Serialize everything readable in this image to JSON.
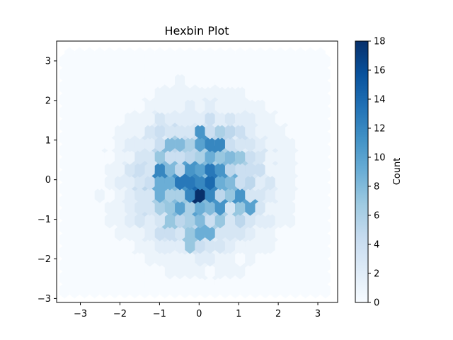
{
  "chart_data": {
    "type": "heatmap",
    "subtype": "hexbin",
    "title": "Hexbin Plot",
    "xlabel": "",
    "ylabel": "",
    "xlim": [
      -3.6,
      3.5
    ],
    "ylim": [
      -3.1,
      3.5
    ],
    "x_ticks": [
      -3,
      -2,
      -1,
      0,
      1,
      2,
      3
    ],
    "y_ticks": [
      -3,
      -2,
      -1,
      0,
      1,
      2,
      3
    ],
    "x_tick_labels": [
      "−3",
      "−2",
      "−1",
      "0",
      "1",
      "2",
      "3"
    ],
    "y_tick_labels": [
      "−3",
      "−2",
      "−1",
      "0",
      "1",
      "2",
      "3"
    ],
    "colormap": "Blues",
    "colorbar": {
      "label": "Count",
      "range": [
        0,
        18
      ],
      "ticks": [
        0,
        2,
        4,
        6,
        8,
        10,
        12,
        14,
        16,
        18
      ]
    },
    "grid": false,
    "hexbin": {
      "gridsize": [
        28,
        15
      ],
      "x_start": -3.4,
      "y_start": -2.8,
      "dx": 0.2535,
      "dy": 0.3214,
      "rows_approx": [
        [
          0,
          0,
          0,
          0,
          0,
          0,
          0,
          0,
          0,
          0,
          0,
          0,
          0,
          0,
          0,
          0,
          0,
          0,
          0,
          0,
          0,
          0,
          0,
          0,
          0,
          0,
          0,
          0
        ],
        [
          0,
          0,
          0,
          0,
          0,
          0,
          0,
          0,
          0,
          0,
          0,
          0,
          0,
          0,
          0,
          0,
          0,
          0,
          0,
          0,
          0,
          0,
          0,
          0,
          0,
          0,
          0,
          0
        ]
      ],
      "peak": {
        "x": -0.03,
        "y": -0.45,
        "count": 18
      },
      "notable_cells": [
        {
          "x": -0.03,
          "y": -0.45,
          "count": 18
        },
        {
          "x": -0.35,
          "y": 0.0,
          "count": 13
        },
        {
          "x": -0.1,
          "y": 0.05,
          "count": 12
        },
        {
          "x": 0.4,
          "y": 0.85,
          "count": 12
        },
        {
          "x": 0.05,
          "y": 1.1,
          "count": 11
        },
        {
          "x": -1.0,
          "y": 0.2,
          "count": 12
        },
        {
          "x": 0.15,
          "y": -0.35,
          "count": 12
        },
        {
          "x": 0.95,
          "y": -0.45,
          "count": 11
        },
        {
          "x": 0.55,
          "y": -0.65,
          "count": 11
        },
        {
          "x": 0.15,
          "y": -1.3,
          "count": 9
        },
        {
          "x": 1.3,
          "y": -0.65,
          "count": 10
        },
        {
          "x": -0.8,
          "y": 0.85,
          "count": 8
        },
        {
          "x": -1.0,
          "y": -0.25,
          "count": 9
        },
        {
          "x": -0.75,
          "y": -1.1,
          "count": 7
        },
        {
          "x": -0.25,
          "y": -1.5,
          "count": 7
        }
      ]
    }
  }
}
